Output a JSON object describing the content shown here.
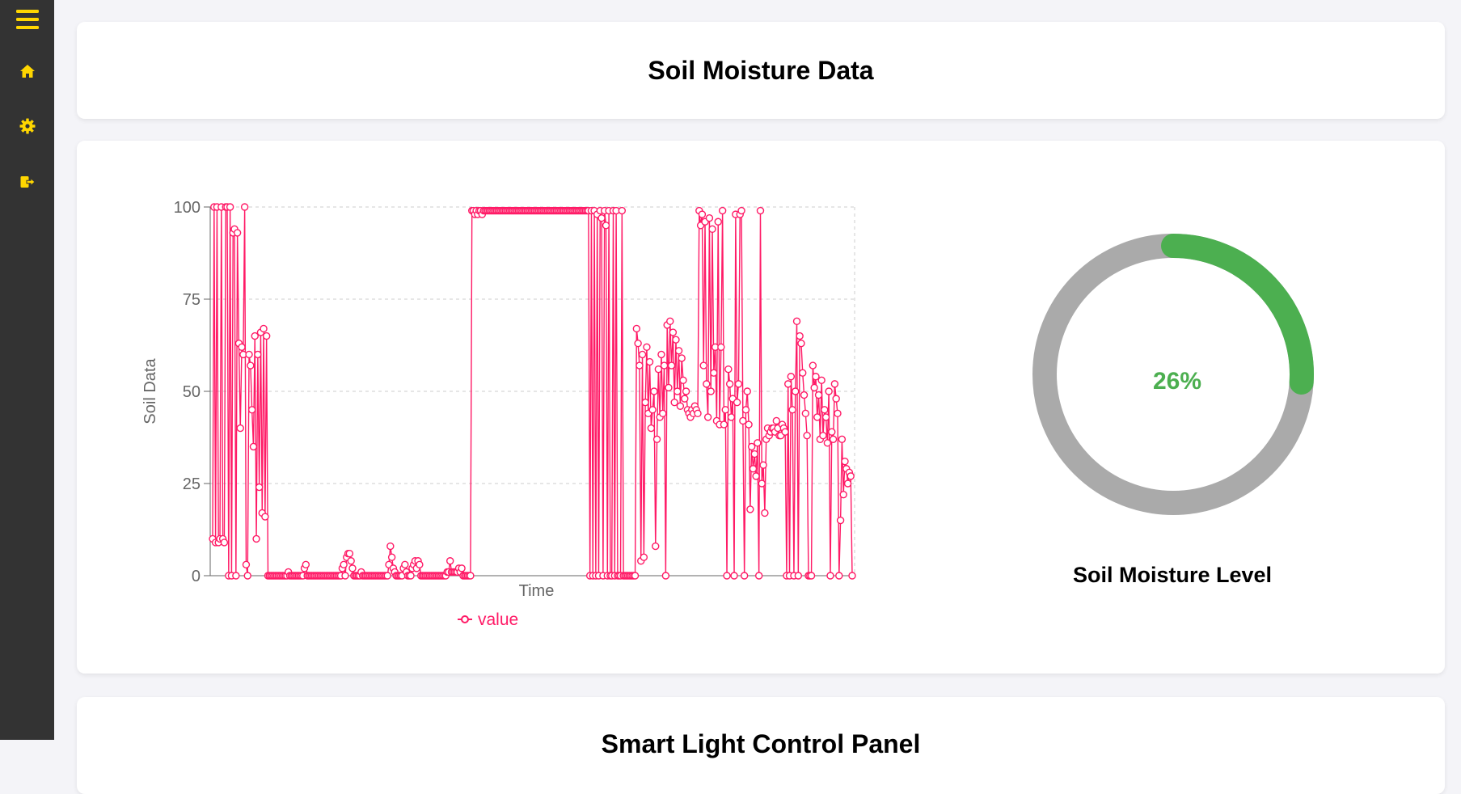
{
  "sidebar": {
    "items": [
      {
        "icon": "menu-icon"
      },
      {
        "icon": "home-icon"
      },
      {
        "icon": "gear-icon"
      },
      {
        "icon": "logout-icon"
      }
    ],
    "icon_color": "#ffd600"
  },
  "header": {
    "title": "Soil Moisture Data"
  },
  "gauge": {
    "value": 26,
    "text": "26%",
    "label": "Soil Moisture Level",
    "fill_color": "#4caf50",
    "track_color": "#aaaaaa"
  },
  "next_card": {
    "title": "Smart Light Control Panel"
  },
  "chart_data": {
    "type": "line",
    "xlabel": "Time",
    "ylabel": "Soil Data",
    "ylim": [
      0,
      100
    ],
    "yticks": [
      0,
      25,
      50,
      75,
      100
    ],
    "grid": true,
    "legend": "bottom",
    "color": "#ff1a66",
    "series": [
      {
        "name": "value",
        "values": [
          10,
          100,
          9,
          100,
          9,
          10,
          100,
          10,
          9,
          100,
          100,
          0,
          100,
          0,
          93,
          94,
          0,
          93,
          63,
          40,
          62,
          60,
          100,
          3,
          0,
          60,
          57,
          45,
          35,
          65,
          10,
          60,
          24,
          66,
          17,
          67,
          16,
          65,
          0,
          0,
          0,
          0,
          0,
          0,
          0,
          0,
          0,
          0,
          0,
          0,
          0,
          0,
          1,
          0,
          0,
          0,
          0,
          0,
          0,
          0,
          0,
          0,
          0,
          2,
          3,
          0,
          0,
          0,
          0,
          0,
          0,
          0,
          0,
          0,
          0,
          0,
          0,
          0,
          0,
          0,
          0,
          0,
          0,
          0,
          0,
          0,
          0,
          0,
          0,
          2,
          3,
          0,
          5,
          6,
          6,
          4,
          2,
          0,
          0,
          0,
          0,
          0,
          1,
          0,
          0,
          0,
          0,
          0,
          0,
          0,
          0,
          0,
          0,
          0,
          0,
          0,
          0,
          0,
          0,
          0,
          0,
          3,
          8,
          5,
          2,
          1,
          0,
          0,
          0,
          0,
          0,
          2,
          3,
          1,
          0,
          0,
          0,
          2,
          3,
          4,
          2,
          4,
          3,
          0,
          0,
          0,
          0,
          0,
          0,
          0,
          0,
          0,
          0,
          0,
          0,
          0,
          0,
          0,
          0,
          0,
          0,
          1,
          1,
          4,
          1,
          1,
          1,
          1,
          1,
          2,
          1,
          2,
          0,
          0,
          0,
          0,
          0,
          0,
          99,
          99,
          98,
          99,
          98,
          99,
          99,
          98,
          99,
          99,
          99,
          99,
          99,
          99,
          99,
          99,
          99,
          99,
          99,
          99,
          99,
          99,
          99,
          99,
          99,
          99,
          99,
          99,
          99,
          99,
          99,
          99,
          99,
          99,
          99,
          99,
          99,
          99,
          99,
          99,
          99,
          99,
          99,
          99,
          99,
          99,
          99,
          99,
          99,
          99,
          99,
          99,
          99,
          99,
          99,
          99,
          99,
          99,
          99,
          99,
          99,
          99,
          99,
          99,
          99,
          99,
          99,
          99,
          99,
          99,
          99,
          99,
          99,
          99,
          99,
          99,
          99,
          99,
          99,
          99,
          99,
          0,
          99,
          0,
          99,
          0,
          98,
          0,
          99,
          97,
          0,
          99,
          95,
          0,
          99,
          0,
          0,
          99,
          0,
          99,
          0,
          0,
          0,
          99,
          0,
          0,
          0,
          0,
          0,
          0,
          0,
          0,
          0,
          67,
          63,
          57,
          4,
          60,
          5,
          47,
          62,
          44,
          58,
          40,
          45,
          50,
          8,
          37,
          56,
          43,
          60,
          44,
          57,
          0,
          68,
          51,
          69,
          57,
          66,
          47,
          64,
          50,
          61,
          46,
          59,
          53,
          48,
          50,
          45,
          44,
          43,
          45,
          44,
          46,
          45,
          44,
          99,
          95,
          98,
          57,
          96,
          52,
          43,
          97,
          50,
          94,
          55,
          62,
          42,
          96,
          41,
          62,
          99,
          41,
          45,
          0,
          56,
          52,
          43,
          48,
          0,
          98,
          47,
          52,
          98,
          99,
          42,
          0,
          45,
          50,
          41,
          18,
          35,
          29,
          33,
          27,
          36,
          0,
          99,
          25,
          30,
          17,
          37,
          40,
          38,
          39,
          40,
          40,
          39,
          42,
          40,
          38,
          38,
          41,
          40,
          39,
          0,
          52,
          0,
          54,
          45,
          0,
          50,
          69,
          0,
          65,
          63,
          55,
          49,
          44,
          38,
          0,
          0,
          0,
          57,
          51,
          54,
          43,
          49,
          37,
          53,
          38,
          45,
          43,
          36,
          50,
          0,
          39,
          37,
          52,
          48,
          44,
          0,
          15,
          37,
          22,
          31,
          29,
          25,
          28,
          27,
          0
        ]
      }
    ]
  }
}
